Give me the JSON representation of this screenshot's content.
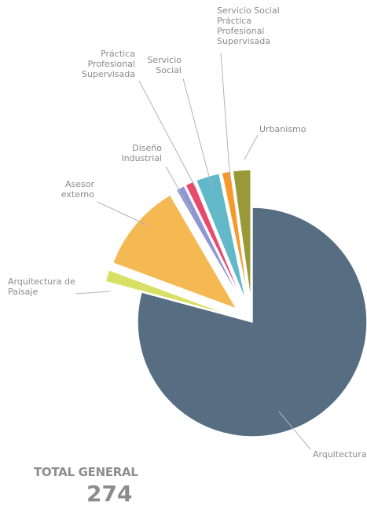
{
  "chart_data": {
    "type": "pie",
    "title": "",
    "slices": [
      {
        "label": "Arquitectura",
        "value": 217,
        "color": "#566d82"
      },
      {
        "label": "Arquitectura de Paisaje",
        "value": 4,
        "color": "#d7e065"
      },
      {
        "label": "Asesor externo",
        "value": 30,
        "color": "#f5b953"
      },
      {
        "label": "Diseño Industrial",
        "value": 3,
        "color": "#8e97d4"
      },
      {
        "label": "Práctica Profesional Supervisada",
        "value": 3,
        "color": "#e84a6e"
      },
      {
        "label": "Servicio Social",
        "value": 8,
        "color": "#62b8c9"
      },
      {
        "label": "Servicio Social Práctica Profesional Supervisada",
        "value": 3,
        "color": "#f7982c"
      },
      {
        "label": "Urbanismo",
        "value": 6,
        "color": "#9a9938"
      }
    ],
    "total_label": "TOTAL GENERAL",
    "total_value": "274"
  }
}
